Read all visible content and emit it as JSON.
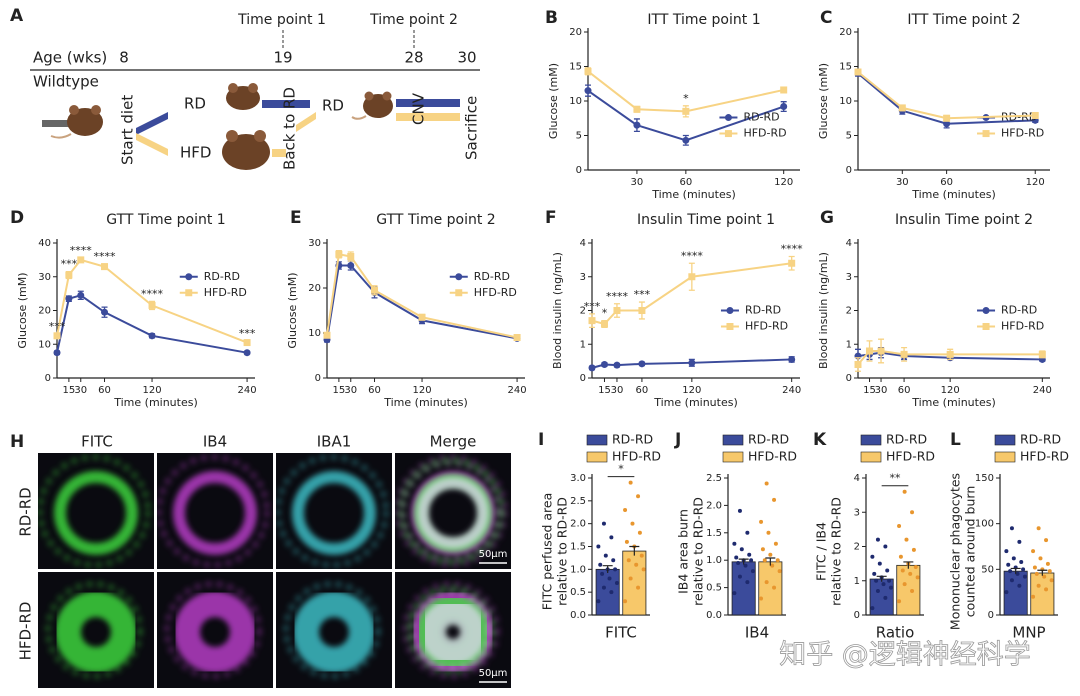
{
  "timeline": {
    "label": "A",
    "time_points": [
      "Time point 1",
      "Time point 2"
    ],
    "axis_label": "Age (wks)",
    "ages": [
      8,
      19,
      28,
      30
    ],
    "strain": "Wildtype",
    "diets": [
      "RD",
      "HFD"
    ],
    "events": [
      "Start diet",
      "Back to RD",
      "CNV",
      "Sacrifice"
    ],
    "diet_after": "RD"
  },
  "images": {
    "label": "H",
    "columns": [
      "FITC",
      "IB4",
      "IBA1",
      "Merge"
    ],
    "rows": [
      "RD-RD",
      "HFD-RD"
    ],
    "scale_bar": "50μm"
  },
  "chart_data": [
    {
      "label": "B",
      "type": "line",
      "title": "ITT Time point 1",
      "x_label": "Time (minutes)",
      "y_label": "Glucose (mM)",
      "x": [
        0,
        30,
        60,
        120
      ],
      "xlim": [
        0,
        130
      ],
      "xticks": [
        30,
        60,
        120
      ],
      "ylim": [
        0,
        20
      ],
      "yticks": [
        0,
        5,
        10,
        15,
        20
      ],
      "series": [
        {
          "name": "RD-RD",
          "color": "#3b4b9b",
          "values": [
            11.5,
            6.5,
            4.3,
            9.2
          ],
          "errors": [
            0.8,
            0.9,
            0.7,
            0.7
          ]
        },
        {
          "name": "HFD-RD",
          "color": "#f7d384",
          "values": [
            14.3,
            8.8,
            8.5,
            11.6
          ],
          "errors": [
            0.5,
            0.4,
            0.8,
            0.4
          ]
        }
      ],
      "annotations": [
        {
          "x": 60,
          "text": "*"
        }
      ]
    },
    {
      "label": "C",
      "type": "line",
      "title": "ITT Time point 2",
      "x_label": "Time (minutes)",
      "y_label": "Glucose (mM)",
      "x": [
        0,
        30,
        60,
        120
      ],
      "xlim": [
        0,
        130
      ],
      "xticks": [
        30,
        60,
        120
      ],
      "ylim": [
        0,
        20
      ],
      "yticks": [
        0,
        5,
        10,
        15,
        20
      ],
      "series": [
        {
          "name": "RD-RD",
          "color": "#3b4b9b",
          "values": [
            14.0,
            8.6,
            6.7,
            7.2
          ],
          "errors": [
            0.4,
            0.5,
            0.6,
            0.3
          ]
        },
        {
          "name": "HFD-RD",
          "color": "#f7d384",
          "values": [
            14.2,
            9.0,
            7.5,
            7.9
          ],
          "errors": [
            0.4,
            0.4,
            0.4,
            0.3
          ]
        }
      ],
      "annotations": []
    },
    {
      "label": "D",
      "type": "line",
      "title": "GTT Time point 1",
      "x_label": "Time (minutes)",
      "y_label": "Glucose (mM)",
      "x": [
        0,
        15,
        30,
        60,
        120,
        240
      ],
      "xlim": [
        0,
        250
      ],
      "xticks": [
        15,
        30,
        60,
        120,
        240
      ],
      "ylim": [
        0,
        40
      ],
      "yticks": [
        0,
        10,
        20,
        30,
        40
      ],
      "series": [
        {
          "name": "RD-RD",
          "color": "#3b4b9b",
          "values": [
            7.5,
            23.5,
            24.5,
            19.5,
            12.5,
            7.5
          ],
          "errors": [
            0.5,
            0.8,
            1.2,
            1.5,
            0.6,
            0.4
          ]
        },
        {
          "name": "HFD-RD",
          "color": "#f7d384",
          "values": [
            12.5,
            30.5,
            35.0,
            33.0,
            21.5,
            10.5
          ],
          "errors": [
            0.6,
            1.0,
            0.6,
            0.8,
            1.2,
            0.5
          ]
        }
      ],
      "annotations": [
        {
          "x": 0,
          "text": "***"
        },
        {
          "x": 15,
          "text": "***"
        },
        {
          "x": 30,
          "text": "****"
        },
        {
          "x": 60,
          "text": "****"
        },
        {
          "x": 120,
          "text": "****"
        },
        {
          "x": 240,
          "text": "***"
        }
      ]
    },
    {
      "label": "E",
      "type": "line",
      "title": "GTT Time point 2",
      "x_label": "Time (minutes)",
      "y_label": "Glucose (mM)",
      "x": [
        0,
        15,
        30,
        60,
        120,
        240
      ],
      "xlim": [
        0,
        250
      ],
      "xticks": [
        15,
        30,
        60,
        120,
        240
      ],
      "ylim": [
        0,
        30
      ],
      "yticks": [
        0,
        10,
        20,
        30
      ],
      "series": [
        {
          "name": "RD-RD",
          "color": "#3b4b9b",
          "values": [
            8.5,
            25.0,
            25.0,
            19.0,
            12.8,
            8.8
          ],
          "errors": [
            0.5,
            0.8,
            1.0,
            1.2,
            0.7,
            0.3
          ]
        },
        {
          "name": "HFD-RD",
          "color": "#f7d384",
          "values": [
            9.5,
            27.5,
            27.0,
            19.5,
            13.5,
            9.0
          ],
          "errors": [
            0.5,
            0.8,
            1.0,
            1.0,
            0.6,
            0.3
          ]
        }
      ],
      "annotations": []
    },
    {
      "label": "F",
      "type": "line",
      "title": "Insulin Time point 1",
      "x_label": "Time (minutes)",
      "y_label": "Blood insulin (ng/mL)",
      "x": [
        0,
        15,
        30,
        60,
        120,
        240
      ],
      "xlim": [
        0,
        250
      ],
      "xticks": [
        15,
        30,
        60,
        120,
        240
      ],
      "ylim": [
        0,
        4
      ],
      "yticks": [
        0,
        1,
        2,
        3,
        4
      ],
      "series": [
        {
          "name": "RD-RD",
          "color": "#3b4b9b",
          "values": [
            0.3,
            0.4,
            0.38,
            0.42,
            0.45,
            0.55
          ],
          "errors": [
            0.05,
            0.05,
            0.05,
            0.05,
            0.1,
            0.08
          ]
        },
        {
          "name": "HFD-RD",
          "color": "#f7d384",
          "values": [
            1.7,
            1.6,
            2.0,
            2.0,
            3.0,
            3.4
          ],
          "errors": [
            0.2,
            0.1,
            0.2,
            0.25,
            0.4,
            0.2
          ]
        }
      ],
      "annotations": [
        {
          "x": 0,
          "text": "***"
        },
        {
          "x": 15,
          "text": "*"
        },
        {
          "x": 30,
          "text": "****"
        },
        {
          "x": 60,
          "text": "***"
        },
        {
          "x": 120,
          "text": "****"
        },
        {
          "x": 240,
          "text": "****"
        }
      ]
    },
    {
      "label": "G",
      "type": "line",
      "title": "Insulin Time point 2",
      "x_label": "Time (minutes)",
      "y_label": "Blood insulin (ng/mL)",
      "x": [
        0,
        15,
        30,
        60,
        120,
        240
      ],
      "xlim": [
        0,
        250
      ],
      "xticks": [
        15,
        30,
        60,
        120,
        240
      ],
      "ylim": [
        0,
        4
      ],
      "yticks": [
        0,
        1,
        2,
        3,
        4
      ],
      "series": [
        {
          "name": "RD-RD",
          "color": "#3b4b9b",
          "values": [
            0.65,
            0.7,
            0.75,
            0.65,
            0.6,
            0.55
          ],
          "errors": [
            0.2,
            0.15,
            0.15,
            0.1,
            0.05,
            0.05
          ]
        },
        {
          "name": "HFD-RD",
          "color": "#f7d384",
          "values": [
            0.4,
            0.8,
            0.8,
            0.7,
            0.7,
            0.7
          ],
          "errors": [
            0.2,
            0.3,
            0.35,
            0.2,
            0.15,
            0.1
          ]
        }
      ],
      "annotations": []
    },
    {
      "label": "I",
      "type": "bar",
      "y_label": [
        "FITC perfused area",
        "relative to RD-RD"
      ],
      "categories": [
        "FITC"
      ],
      "ylim": [
        0,
        3
      ],
      "yticks": [
        {
          "value": 0,
          "label": "0.0"
        },
        {
          "value": 0.5,
          "label": "0.5"
        },
        {
          "value": 1,
          "label": "1.0"
        },
        {
          "value": 1.5,
          "label": "1.5"
        },
        {
          "value": 2,
          "label": "2.0"
        },
        {
          "value": 2.5,
          "label": "2.5"
        },
        {
          "value": 3,
          "label": "3.0"
        }
      ],
      "series": [
        {
          "name": "RD-RD",
          "color": "#3b4b9b",
          "point_color": "#1e2a6e",
          "values": [
            1.0
          ],
          "errors": [
            0.08
          ],
          "points": [
            0.3,
            0.5,
            0.6,
            0.7,
            0.8,
            0.9,
            1.0,
            1.0,
            1.1,
            1.2,
            1.3,
            1.5,
            1.7,
            2.0
          ]
        },
        {
          "name": "HFD-RD",
          "color": "#f7c86a",
          "point_color": "#e8962e",
          "values": [
            1.4
          ],
          "errors": [
            0.1
          ],
          "points": [
            0.3,
            0.6,
            0.8,
            1.0,
            1.1,
            1.2,
            1.3,
            1.5,
            1.6,
            1.8,
            2.0,
            2.3,
            2.6,
            2.9
          ]
        }
      ],
      "annotations": [
        {
          "text": "*"
        }
      ]
    },
    {
      "label": "J",
      "type": "bar",
      "y_label": [
        "IB4 area burn",
        "relative to RD-RD"
      ],
      "categories": [
        "IB4"
      ],
      "ylim": [
        0,
        2.5
      ],
      "yticks": [
        {
          "value": 0,
          "label": "0.0"
        },
        {
          "value": 0.5,
          "label": "0.5"
        },
        {
          "value": 1,
          "label": "1.0"
        },
        {
          "value": 1.5,
          "label": "1.5"
        },
        {
          "value": 2,
          "label": "2.0"
        },
        {
          "value": 2.5,
          "label": "2.5"
        }
      ],
      "series": [
        {
          "name": "RD-RD",
          "color": "#3b4b9b",
          "point_color": "#1e2a6e",
          "values": [
            0.97
          ],
          "errors": [
            0.05
          ],
          "points": [
            0.4,
            0.6,
            0.7,
            0.8,
            0.9,
            0.95,
            1.0,
            1.0,
            1.05,
            1.1,
            1.2,
            1.3,
            1.5,
            1.9
          ]
        },
        {
          "name": "HFD-RD",
          "color": "#f7c86a",
          "point_color": "#e8962e",
          "values": [
            0.97
          ],
          "errors": [
            0.07
          ],
          "points": [
            0.3,
            0.5,
            0.6,
            0.8,
            0.9,
            1.0,
            1.0,
            1.1,
            1.2,
            1.3,
            1.5,
            1.7,
            2.1,
            2.4
          ]
        }
      ],
      "annotations": []
    },
    {
      "label": "K",
      "type": "bar",
      "y_label": [
        "FITC / IB4",
        "relative to RD-RD"
      ],
      "categories": [
        "Ratio"
      ],
      "ylim": [
        0,
        4
      ],
      "yticks": [
        0,
        1,
        2,
        3,
        4
      ],
      "series": [
        {
          "name": "RD-RD",
          "color": "#3b4b9b",
          "point_color": "#1e2a6e",
          "values": [
            1.05
          ],
          "errors": [
            0.08
          ],
          "points": [
            0.2,
            0.5,
            0.7,
            0.8,
            0.9,
            1.0,
            1.0,
            1.1,
            1.2,
            1.3,
            1.5,
            1.7,
            2.0,
            2.2
          ]
        },
        {
          "name": "HFD-RD",
          "color": "#f7c86a",
          "point_color": "#e8962e",
          "values": [
            1.45
          ],
          "errors": [
            0.1
          ],
          "points": [
            0.4,
            0.7,
            0.9,
            1.1,
            1.2,
            1.3,
            1.4,
            1.5,
            1.7,
            1.9,
            2.2,
            2.6,
            3.0,
            3.6
          ]
        }
      ],
      "annotations": [
        {
          "text": "**"
        }
      ]
    },
    {
      "label": "L",
      "type": "bar",
      "y_label": [
        "Mononuclear phagocytes",
        "counted around burn"
      ],
      "categories": [
        "MNP"
      ],
      "ylim": [
        0,
        150
      ],
      "yticks": [
        0,
        50,
        100,
        150
      ],
      "series": [
        {
          "name": "RD-RD",
          "color": "#3b4b9b",
          "point_color": "#1e2a6e",
          "values": [
            48
          ],
          "errors": [
            3
          ],
          "points": [
            25,
            32,
            38,
            42,
            45,
            48,
            50,
            52,
            55,
            58,
            62,
            70,
            80,
            95
          ]
        },
        {
          "name": "HFD-RD",
          "color": "#f7c86a",
          "point_color": "#e8962e",
          "values": [
            46
          ],
          "errors": [
            3
          ],
          "points": [
            20,
            28,
            32,
            38,
            42,
            45,
            48,
            50,
            52,
            56,
            62,
            70,
            82,
            95
          ]
        }
      ],
      "annotations": []
    }
  ],
  "watermark": "知乎 @逻辑神经科学"
}
